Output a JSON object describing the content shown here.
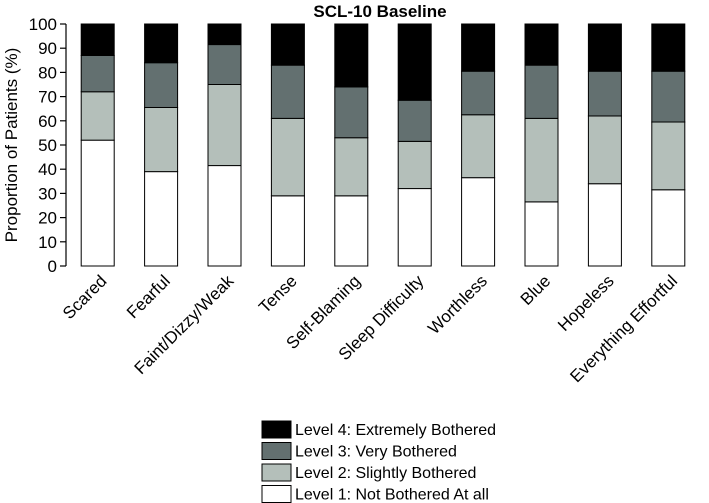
{
  "chart_data": {
    "type": "bar",
    "stacked": true,
    "title": "SCL-10 Baseline",
    "ylabel": "Proportion of Patients (%)",
    "xlabel": "",
    "ylim": [
      0,
      100
    ],
    "yticks": [
      0,
      10,
      20,
      30,
      40,
      50,
      60,
      70,
      80,
      90,
      100
    ],
    "grid": false,
    "legend_position": "bottom",
    "categories": [
      "Scared",
      "Fearful",
      "Faint/Dizzy/Weak",
      "Tense",
      "Self-Blaming",
      "Sleep Difficulty",
      "Worthless",
      "Blue",
      "Hopeless",
      "Everything Effortful"
    ],
    "series": [
      {
        "name": "Level 1: Not Bothered At all",
        "color": "#ffffff",
        "values": [
          52,
          39,
          41.5,
          29,
          29,
          32,
          36.5,
          26.5,
          34,
          31.5
        ]
      },
      {
        "name": "Level 2: Slightly Bothered",
        "color": "#b4bfba",
        "values": [
          20,
          26.5,
          33.5,
          32,
          24,
          19.5,
          26,
          34.5,
          28,
          28
        ]
      },
      {
        "name": "Level 3: Very Bothered",
        "color": "#637070",
        "values": [
          15,
          18.5,
          16.5,
          22,
          21,
          17,
          18,
          22,
          18.5,
          21
        ]
      },
      {
        "name": "Level 4: Extremely Bothered",
        "color": "#000000",
        "values": [
          13,
          16,
          8.5,
          17,
          26,
          31.5,
          19.5,
          17,
          19.5,
          19.5
        ]
      }
    ],
    "legend_order": [
      "Level 4: Extremely Bothered",
      "Level 3: Very Bothered",
      "Level 2: Slightly Bothered",
      "Level 1: Not Bothered At all"
    ]
  }
}
